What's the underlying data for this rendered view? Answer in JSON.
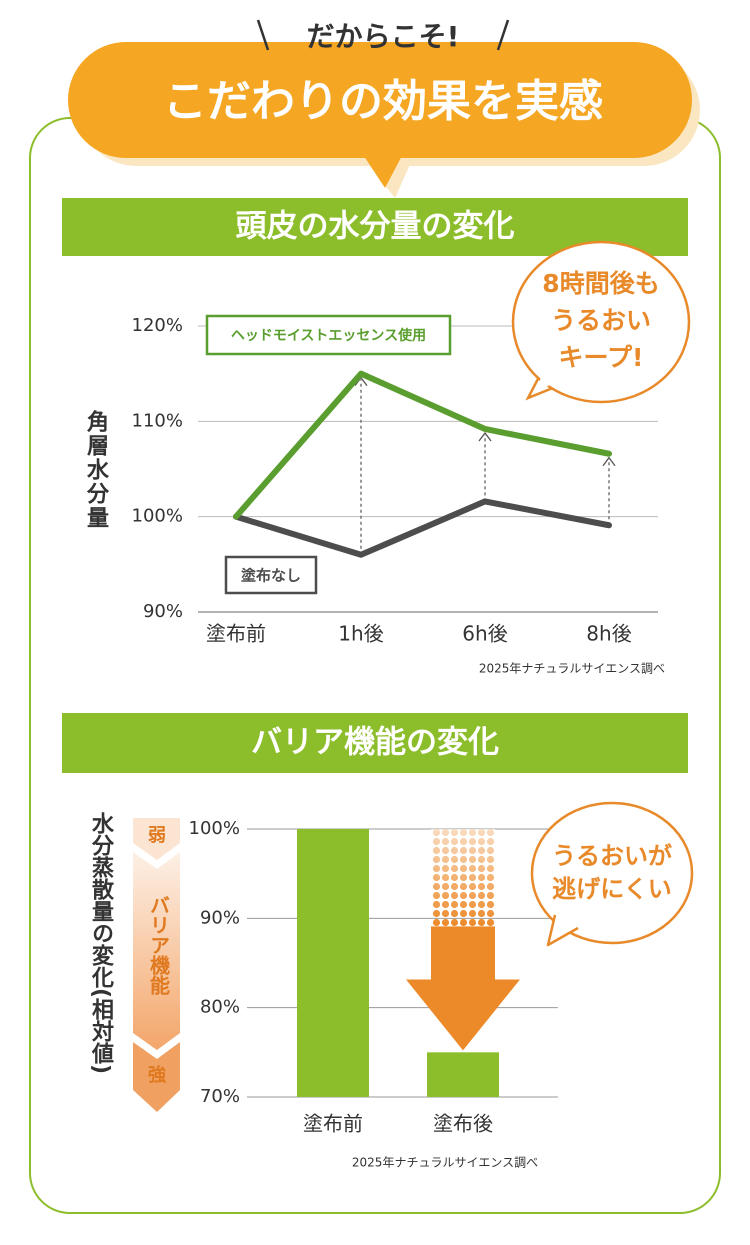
{
  "header": {
    "kicker": "だからこそ!",
    "title": "こだわりの効果を実感"
  },
  "chart_data": [
    {
      "type": "line",
      "title": "頭皮の水分量の変化",
      "y_label": "角層水分量",
      "categories": [
        "塗布前",
        "1h後",
        "6h後",
        "8h後"
      ],
      "series": [
        {
          "name": "ヘッドモイストエッセンス使用",
          "color": "#5a9e2f",
          "values": [
            100,
            115,
            109.2,
            106.6
          ]
        },
        {
          "name": "塗布なし",
          "color": "#4d4d4d",
          "values": [
            100,
            96,
            101.6,
            99.1
          ]
        }
      ],
      "ylim": [
        90,
        120
      ],
      "yticks": [
        {
          "value": 90,
          "label": "90%"
        },
        {
          "value": 100,
          "label": "100%"
        },
        {
          "value": 110,
          "label": "110%"
        },
        {
          "value": 120,
          "label": "120%"
        }
      ],
      "grid": true,
      "callout": [
        "8時間後も",
        "うるおい",
        "キープ!"
      ],
      "source": "2025年ナチュラルサイエンス調べ"
    },
    {
      "type": "bar",
      "title": "バリア機能の変化",
      "y_label": "水分蒸散量の変化(相対値)",
      "categories": [
        "塗布前",
        "塗布後"
      ],
      "values": [
        100,
        75
      ],
      "color": "#8cbd2a",
      "ylim": [
        70,
        100
      ],
      "yticks": [
        {
          "value": 70,
          "label": "70%"
        },
        {
          "value": 80,
          "label": "80%"
        },
        {
          "value": 90,
          "label": "90%"
        },
        {
          "value": 100,
          "label": "100%"
        }
      ],
      "grid": true,
      "side_scale": [
        "弱",
        "バリア機能",
        "強"
      ],
      "callout": [
        "うるおいが",
        "逃げにくい"
      ],
      "source": "2025年ナチュラルサイエンス調べ"
    }
  ]
}
